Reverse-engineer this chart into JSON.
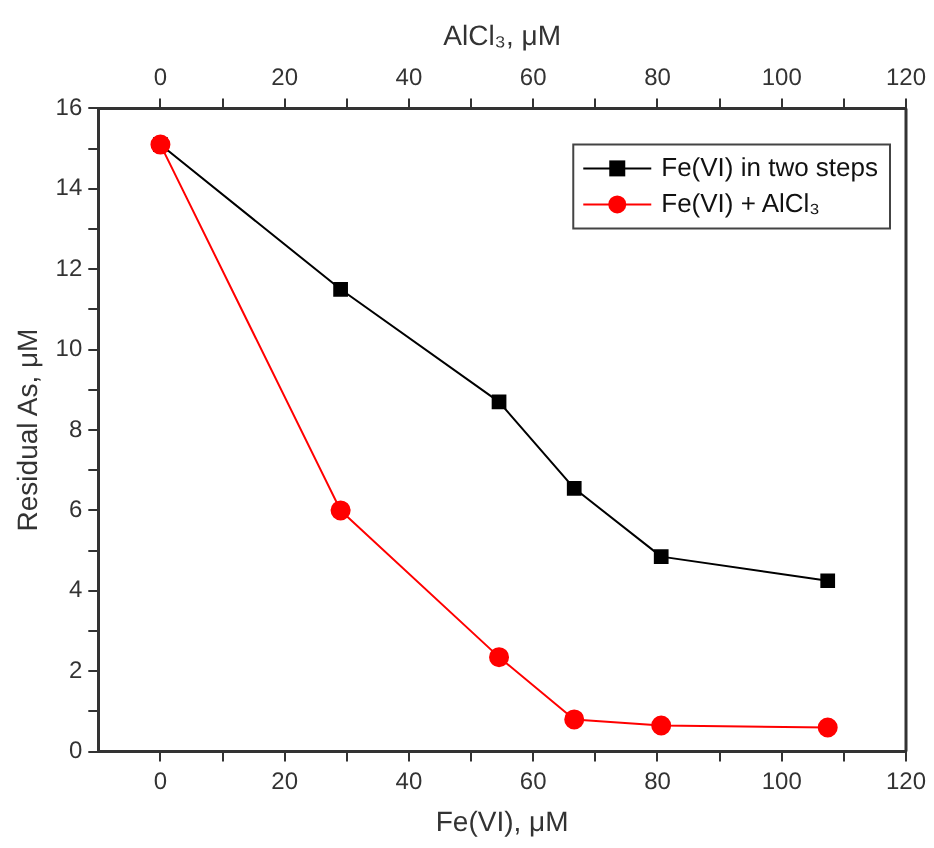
{
  "chart_data": {
    "type": "line",
    "xlabel": "Fe(VI), μM",
    "x2label": "AlCl₃, μM",
    "ylabel": "Residual As, μM",
    "x": [
      0,
      29,
      54.5,
      66.6,
      80.6,
      107.4
    ],
    "series": [
      {
        "name": "Fe(VI) in two steps",
        "color": "#000000",
        "marker": "square",
        "values": [
          15.1,
          11.5,
          8.7,
          6.55,
          4.85,
          4.25
        ]
      },
      {
        "name": "Fe(VI) + AlCl₃",
        "color": "#ff0000",
        "marker": "circle",
        "values": [
          15.1,
          6.0,
          2.35,
          0.8,
          0.65,
          0.6
        ]
      }
    ],
    "xlim": [
      -10,
      120
    ],
    "xticks": [
      0,
      {
        "value": 10,
        "label": null
      },
      20,
      {
        "value": 30,
        "label": null
      },
      40,
      {
        "value": 50,
        "label": null
      },
      60,
      {
        "value": 70,
        "label": null
      },
      80,
      {
        "value": 90,
        "label": null
      },
      100,
      {
        "value": 110,
        "label": null
      },
      120
    ],
    "x2lim": [
      -10,
      120
    ],
    "x2ticks": [
      0,
      {
        "value": 10,
        "label": null
      },
      20,
      {
        "value": 30,
        "label": null
      },
      40,
      {
        "value": 50,
        "label": null
      },
      60,
      {
        "value": 70,
        "label": null
      },
      80,
      {
        "value": 90,
        "label": null
      },
      100,
      {
        "value": 110,
        "label": null
      },
      120
    ],
    "ylim": [
      0,
      16
    ],
    "yticks": [
      0,
      {
        "value": 1,
        "label": null
      },
      2,
      {
        "value": 3,
        "label": null
      },
      4,
      {
        "value": 5,
        "label": null
      },
      6,
      {
        "value": 7,
        "label": null
      },
      8,
      {
        "value": 9,
        "label": null
      },
      10,
      {
        "value": 11,
        "label": null
      },
      12,
      {
        "value": 13,
        "label": null
      },
      14,
      {
        "value": 15,
        "label": null
      },
      16
    ],
    "legend": "top right",
    "grid": false,
    "line_style": "solid"
  }
}
